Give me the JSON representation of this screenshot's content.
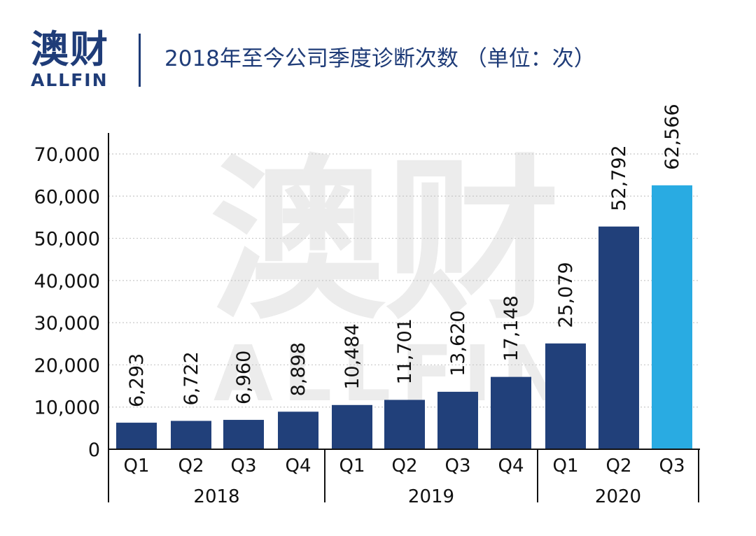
{
  "header": {
    "logo_cn": "澳财",
    "logo_en": "ALLFIN",
    "title": "2018年至今公司季度诊断次数 （单位：次）"
  },
  "watermark": {
    "cn": "澳财",
    "en": "ALLFIN"
  },
  "colors": {
    "bar": "#21407a",
    "highlight": "#29abe2",
    "text": "#1f3c78"
  },
  "chart_data": {
    "type": "bar",
    "title": "2018年至今公司季度诊断次数 （单位：次）",
    "categories": [
      "Q1",
      "Q2",
      "Q3",
      "Q4",
      "Q1",
      "Q2",
      "Q3",
      "Q4",
      "Q1",
      "Q2",
      "Q3"
    ],
    "groups": [
      {
        "label": "2018",
        "count": 4
      },
      {
        "label": "2019",
        "count": 4
      },
      {
        "label": "2020",
        "count": 3
      }
    ],
    "values": [
      6293,
      6722,
      6960,
      8898,
      10484,
      11701,
      13620,
      17148,
      25079,
      52792,
      62566
    ],
    "value_labels": [
      "6,293",
      "6,722",
      "6,960",
      "8,898",
      "10,484",
      "11,701",
      "13,620",
      "17,148",
      "25,079",
      "52,792",
      "62,566"
    ],
    "highlight_index": 10,
    "ylim": [
      0,
      70000
    ],
    "yticks": [
      0,
      10000,
      20000,
      30000,
      40000,
      50000,
      60000,
      70000
    ],
    "ytick_labels": [
      "0",
      "10,000",
      "20,000",
      "30,000",
      "40,000",
      "50,000",
      "60,000",
      "70,000"
    ],
    "grid": true
  }
}
